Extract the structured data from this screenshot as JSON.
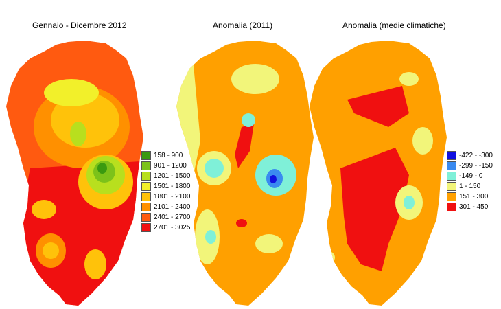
{
  "panels": [
    {
      "title": "Gennaio - Dicembre 2012"
    },
    {
      "title": "Anomalia (2011)"
    },
    {
      "title": "Anomalia (medie climatiche)"
    }
  ],
  "legend_precip": [
    {
      "label": "158 - 900",
      "color": "#3a9a10"
    },
    {
      "label": "901 - 1200",
      "color": "#7cc21a"
    },
    {
      "label": "1201 - 1500",
      "color": "#b8df1e"
    },
    {
      "label": "1501 - 1800",
      "color": "#f2f02a"
    },
    {
      "label": "1801 - 2100",
      "color": "#ffc20a"
    },
    {
      "label": "2101 - 2400",
      "color": "#ff9000"
    },
    {
      "label": "2401 - 2700",
      "color": "#ff5a10"
    },
    {
      "label": "2701 - 3025",
      "color": "#f01010"
    }
  ],
  "legend_anomaly": [
    {
      "label": "-422 - -300",
      "color": "#1010e0"
    },
    {
      "label": "-299 - -150",
      "color": "#3a8af0"
    },
    {
      "label": "-149 - 0",
      "color": "#7ff0d8"
    },
    {
      "label": "1 - 150",
      "color": "#f2f57a"
    },
    {
      "label": "151 - 300",
      "color": "#ffa000"
    },
    {
      "label": "301 - 450",
      "color": "#f01010"
    }
  ]
}
